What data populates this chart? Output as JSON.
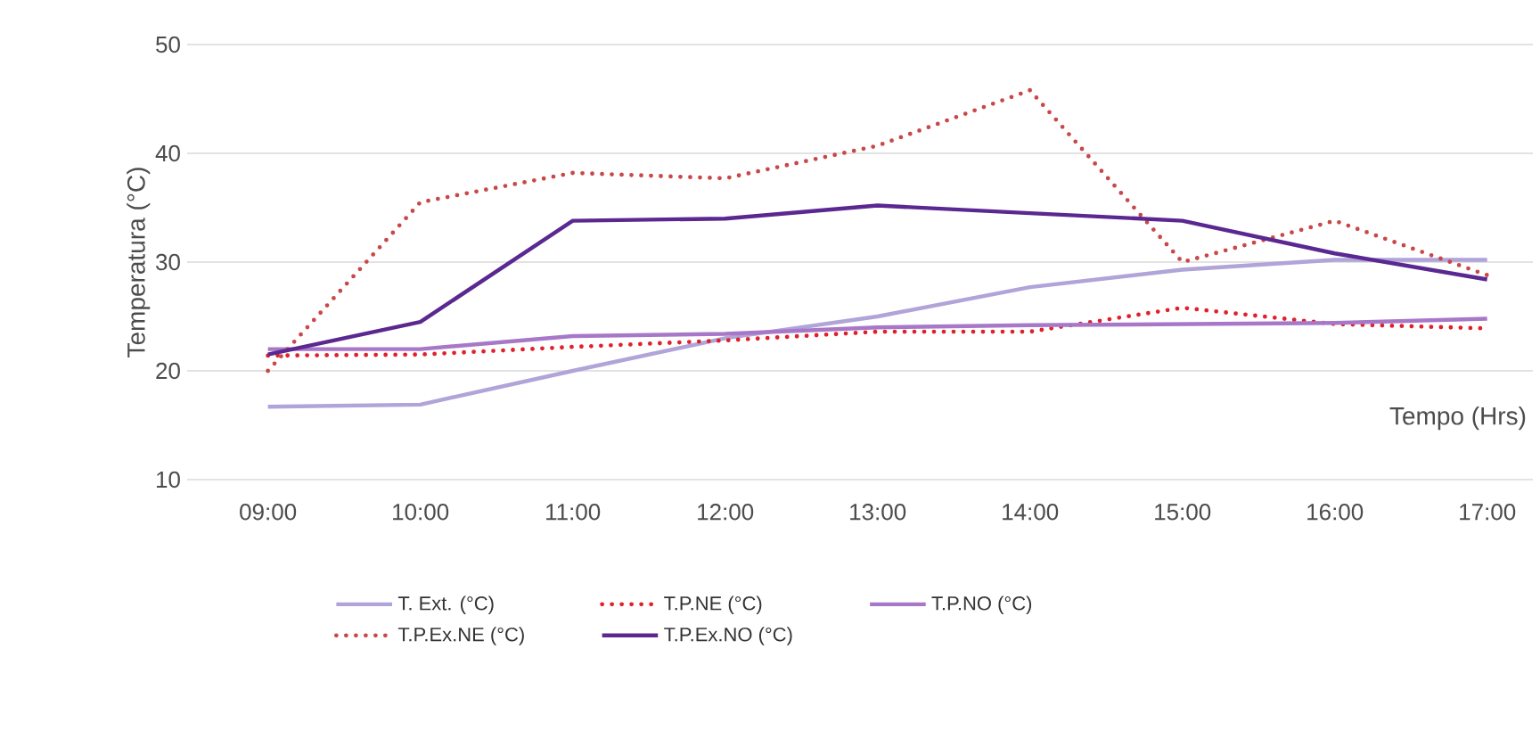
{
  "chart_data": {
    "type": "line",
    "xlabel": "Tempo (Hrs)",
    "ylabel": "Temperatura (°C)",
    "categories": [
      "09:00",
      "10:00",
      "11:00",
      "12:00",
      "13:00",
      "14:00",
      "15:00",
      "16:00",
      "17:00"
    ],
    "series": [
      {
        "name": "T. Ext. (°C)",
        "color": "#b0a4d8",
        "line_style": "solid",
        "values": [
          16.7,
          16.9,
          20,
          23,
          25,
          27.7,
          29.3,
          30.2,
          30.2
        ]
      },
      {
        "name": "T.P.NE (°C)",
        "color": "#e0202a",
        "line_style": "dotted",
        "values": [
          21.4,
          21.5,
          22.2,
          22.8,
          23.6,
          23.6,
          25.8,
          24.3,
          23.9
        ]
      },
      {
        "name": "T.P.NO (°C)",
        "color": "#a878c8",
        "line_style": "solid",
        "values": [
          22,
          22,
          23.2,
          23.4,
          24,
          24.2,
          24.3,
          24.4,
          24.8
        ]
      },
      {
        "name": "T.P.Ex.NE (°C)",
        "color": "#c84848",
        "line_style": "dotted",
        "values": [
          20,
          35.5,
          38.2,
          37.7,
          40.7,
          45.8,
          30,
          33.8,
          28.8
        ]
      },
      {
        "name": "T.P.Ex.NO (°C)",
        "color": "#5a2890",
        "line_style": "solid",
        "values": [
          21.5,
          24.5,
          33.8,
          34,
          35.2,
          34.5,
          33.8,
          30.8,
          28.4
        ]
      }
    ],
    "ylim": [
      10,
      50
    ],
    "yticks": [
      10,
      20,
      30,
      40,
      50
    ],
    "grid": "y",
    "legend": "bottom"
  }
}
